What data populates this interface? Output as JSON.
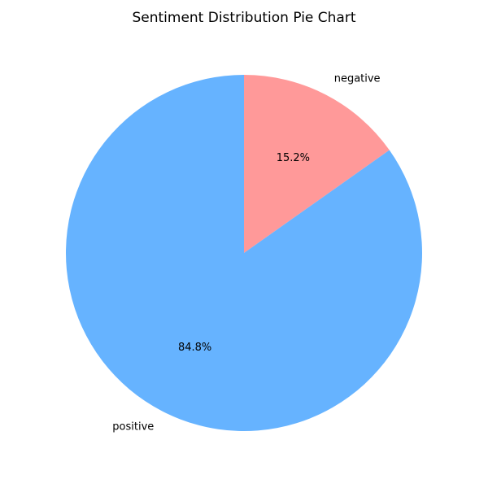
{
  "chart_data": {
    "type": "pie",
    "title": "Sentiment Distribution Pie Chart",
    "slices": [
      {
        "label": "negative",
        "value": 15.2,
        "pct_label": "15.2%",
        "color": "#ff9999"
      },
      {
        "label": "positive",
        "value": 84.8,
        "pct_label": "84.8%",
        "color": "#66b3ff"
      }
    ],
    "start_angle": "top",
    "direction": "clockwise"
  }
}
